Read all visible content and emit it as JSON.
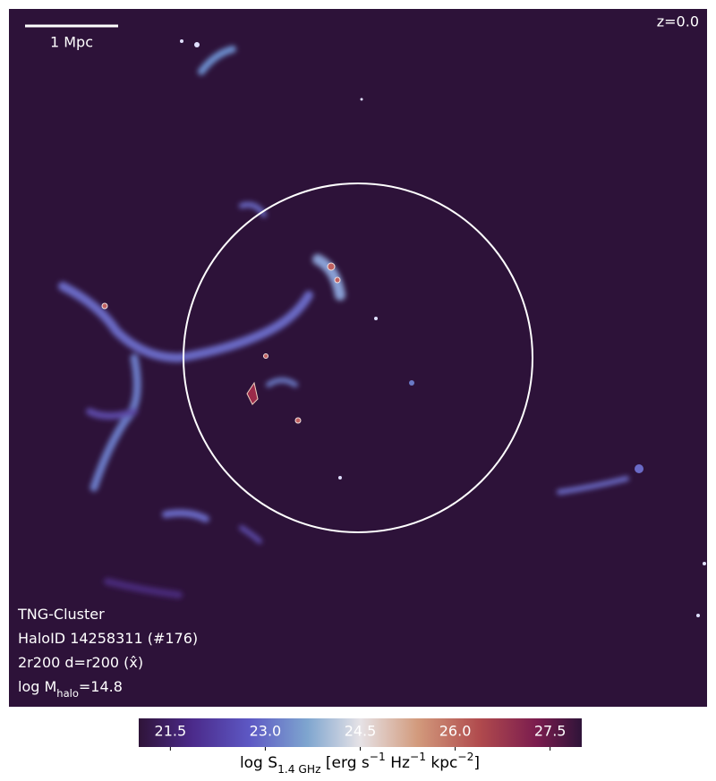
{
  "chart_data": {
    "type": "image",
    "scale_bar_label": "1 Mpc",
    "redshift_label": "z=0.0",
    "annotations": [
      [
        {
          "text": "TNG-Cluster"
        }
      ],
      [
        {
          "text": "HaloID 14258311 (#176)"
        }
      ],
      [
        {
          "text": "2r200 d=r200 (x̂)"
        }
      ],
      [
        {
          "text": "log M"
        },
        {
          "text": "halo",
          "style": "sub"
        },
        {
          "text": "=14.8"
        }
      ]
    ],
    "colorbar": {
      "label": [
        {
          "text": "log S"
        },
        {
          "text": "1.4 GHz",
          "style": "sub"
        },
        {
          "text": " [erg s"
        },
        {
          "text": "−1",
          "style": "sup"
        },
        {
          "text": " Hz"
        },
        {
          "text": "−1",
          "style": "sup"
        },
        {
          "text": " kpc"
        },
        {
          "text": "−2",
          "style": "sup"
        },
        {
          "text": "]"
        }
      ],
      "lim": [
        21,
        28
      ],
      "ticks": [
        21.5,
        {
          "value": 23.0,
          "label": "23.0"
        },
        24.5,
        {
          "value": 26.0,
          "label": "26.0"
        },
        27.5
      ]
    }
  }
}
